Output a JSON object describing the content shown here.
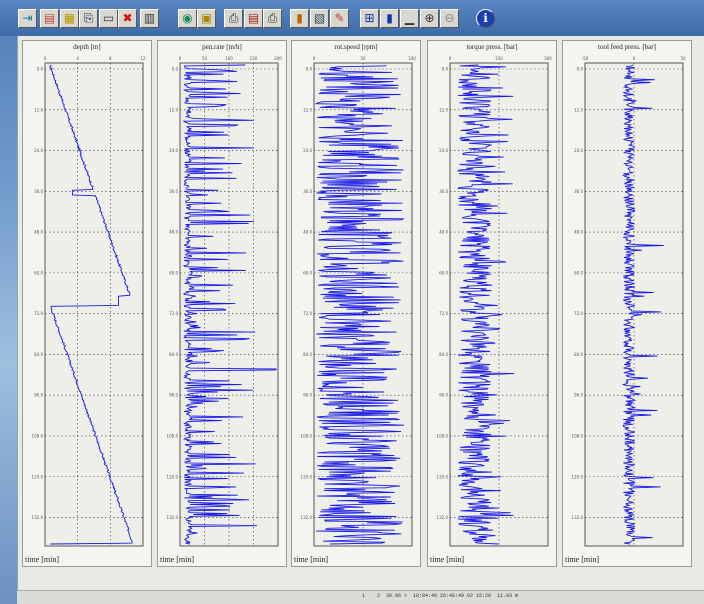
{
  "toolbar": {
    "buttons": [
      {
        "name": "exit-icon",
        "glyph": "⇥",
        "color": "#1a7a9a"
      },
      {
        "name": "open-file-icon",
        "glyph": "▤",
        "color": "#c43"
      },
      {
        "name": "folder-icon",
        "glyph": "▦",
        "color": "#b90"
      },
      {
        "name": "copy-icon",
        "glyph": "⎘",
        "color": "#235"
      },
      {
        "name": "table-icon",
        "glyph": "▭",
        "color": "#333"
      },
      {
        "name": "delete-icon",
        "glyph": "✖",
        "color": "#d11"
      },
      {
        "name": "chart-icon",
        "glyph": "▥",
        "color": "#333"
      },
      {
        "name": "pdf-icon",
        "glyph": "◉",
        "color": "#1a8a5a"
      },
      {
        "name": "export-icon",
        "glyph": "▣",
        "color": "#a80"
      },
      {
        "name": "print-icon",
        "glyph": "⎙",
        "color": "#333"
      },
      {
        "name": "print-preview-icon",
        "glyph": "▤",
        "color": "#a22"
      },
      {
        "name": "printer-setup-icon",
        "glyph": "⎙",
        "color": "#333"
      },
      {
        "name": "columns-icon",
        "glyph": "▮",
        "color": "#b60"
      },
      {
        "name": "settings-icon",
        "glyph": "▧",
        "color": "#345"
      },
      {
        "name": "pen-icon",
        "glyph": "✎",
        "color": "#c33"
      },
      {
        "name": "auto-scale-icon",
        "glyph": "⊞",
        "color": "#13a"
      },
      {
        "name": "info-bar-icon",
        "glyph": "▮",
        "color": "#13a"
      },
      {
        "name": "scale-icon",
        "glyph": "▁",
        "color": "#333"
      },
      {
        "name": "zoom-in-icon",
        "glyph": "⊕",
        "color": "#333"
      },
      {
        "name": "zoom-out-icon",
        "glyph": "⊖",
        "color": "#888"
      },
      {
        "name": "info-icon",
        "glyph": "ℹ",
        "color": "#fff"
      }
    ]
  },
  "panels": [
    {
      "title": "depth [m]",
      "x_ticks": [
        "0",
        "4",
        "8",
        "12"
      ]
    },
    {
      "title": "pen.rate [m/h]",
      "x_ticks": [
        "0",
        "50",
        "100",
        "150",
        "200"
      ]
    },
    {
      "title": "rot.speed [rpm]",
      "x_ticks": [
        "0",
        "50",
        "100"
      ]
    },
    {
      "title": "torque press. [bar]",
      "x_ticks": [
        "0",
        "150",
        "300"
      ]
    },
    {
      "title": "tool feed press. [bar]",
      "x_ticks": [
        "-50",
        "0",
        "50"
      ]
    }
  ],
  "y_ticks": [
    "0.0",
    "12.0",
    "24.0",
    "36.0",
    "48.0",
    "60.0",
    "72.0",
    "84.0",
    "96.0",
    "108.0",
    "120.0",
    "132.0"
  ],
  "time_label": "time [min]",
  "status_text": "1    2  30.06 >  18:04:40 20:48:49 02 15:28  11.93 m",
  "line_color": "#1a1ae6"
}
